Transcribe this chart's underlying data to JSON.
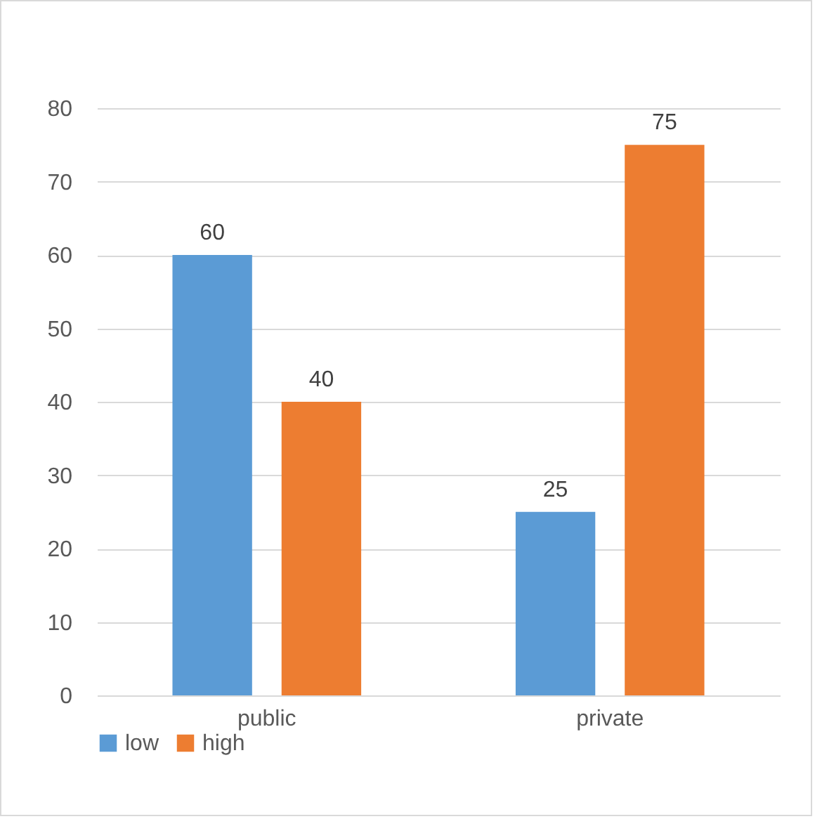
{
  "chart_data": {
    "type": "bar",
    "categories": [
      "public",
      "private"
    ],
    "series": [
      {
        "name": "low",
        "color": "#5b9bd5",
        "values": [
          60,
          25
        ]
      },
      {
        "name": "high",
        "color": "#ed7d31",
        "values": [
          40,
          75
        ]
      }
    ],
    "ylim": [
      0,
      80
    ],
    "yticks": [
      0,
      10,
      20,
      30,
      40,
      50,
      60,
      70,
      80
    ],
    "grid": "y",
    "legend": "bottom",
    "data_labels": true
  }
}
